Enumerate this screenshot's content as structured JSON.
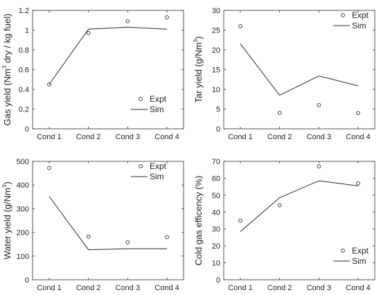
{
  "chart_data": [
    {
      "type": "line",
      "categories": [
        "Cond 1",
        "Cond 2",
        "Cond 3",
        "Cond 4"
      ],
      "ylabel": "Gas yield (Nm3 dry / kg fuel)",
      "ylabel_parts": {
        "pre": "Gas yield (Nm",
        "sup": "3",
        "post": " dry / kg fuel)"
      },
      "ylim": [
        0,
        1.2
      ],
      "yticks": [
        0,
        0.2,
        0.4,
        0.6,
        0.8,
        1,
        1.2
      ],
      "grid": false,
      "legend": "bottom-right",
      "series": [
        {
          "name": "Expt",
          "marker": "circle",
          "values": [
            0.45,
            0.97,
            1.09,
            1.13
          ]
        },
        {
          "name": "Sim",
          "marker": "line",
          "values": [
            0.45,
            1.01,
            1.03,
            1.01
          ]
        }
      ]
    },
    {
      "type": "line",
      "categories": [
        "Cond 1",
        "Cond 2",
        "Cond 3",
        "Cond 4"
      ],
      "ylabel": "Tar yield (g/Nm3)",
      "ylabel_parts": {
        "pre": "Tar yield (g/Nm",
        "sup": "3",
        "post": ")"
      },
      "ylim": [
        0,
        30
      ],
      "yticks": [
        0,
        5,
        10,
        15,
        20,
        25,
        30
      ],
      "grid": false,
      "legend": "top-right",
      "series": [
        {
          "name": "Expt",
          "marker": "circle",
          "values": [
            26,
            4,
            6,
            4
          ]
        },
        {
          "name": "Sim",
          "marker": "line",
          "values": [
            21.5,
            8.5,
            13.4,
            10.9
          ]
        }
      ]
    },
    {
      "type": "line",
      "categories": [
        "Cond 1",
        "Cond 2",
        "Cond 3",
        "Cond 4"
      ],
      "ylabel": "Water yield (g/Nm3)",
      "ylabel_parts": {
        "pre": "Water yield (g/Nm",
        "sup": "3",
        "post": ")"
      },
      "ylim": [
        0,
        500
      ],
      "yticks": [
        0,
        100,
        200,
        300,
        400,
        500
      ],
      "grid": false,
      "legend": "top-right",
      "series": [
        {
          "name": "Expt",
          "marker": "circle",
          "values": [
            472,
            182,
            158,
            180
          ]
        },
        {
          "name": "Sim",
          "marker": "line",
          "values": [
            352,
            127,
            131,
            131
          ]
        }
      ]
    },
    {
      "type": "line",
      "categories": [
        "Cond 1",
        "Cond 2",
        "Cond 3",
        "Cond 4"
      ],
      "ylabel": "Cold gas efficency (%)",
      "ylabel_parts": {
        "pre": "Cold gas efficency (%)",
        "sup": "",
        "post": ""
      },
      "ylim": [
        0,
        70
      ],
      "yticks": [
        0,
        10,
        20,
        30,
        40,
        50,
        60,
        70
      ],
      "grid": false,
      "legend": "bottom-right",
      "series": [
        {
          "name": "Expt",
          "marker": "circle",
          "values": [
            35,
            44,
            67,
            57
          ]
        },
        {
          "name": "Sim",
          "marker": "line",
          "values": [
            28.5,
            48.5,
            58.5,
            55.5
          ]
        }
      ]
    }
  ]
}
